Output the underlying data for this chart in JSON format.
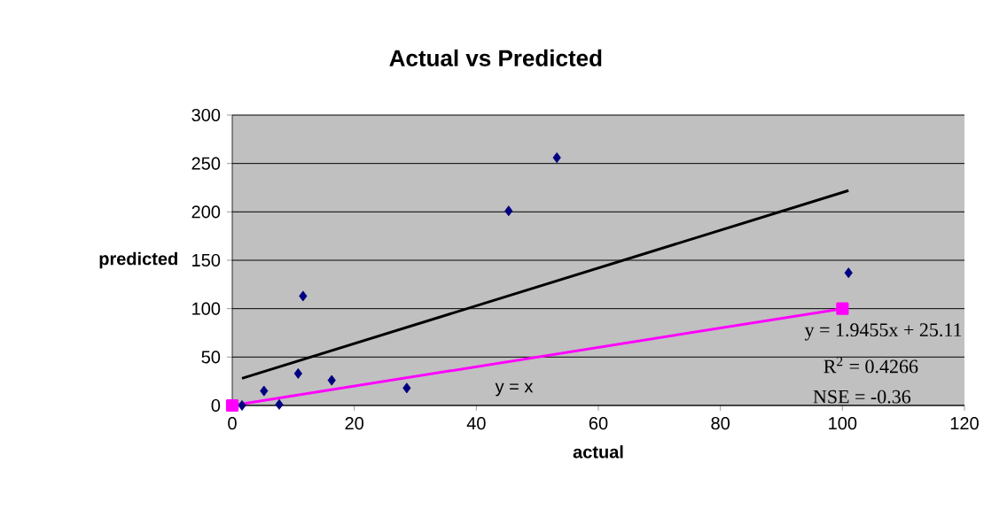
{
  "chart_data": {
    "type": "scatter",
    "title": "Actual vs Predicted",
    "xlabel": "actual",
    "ylabel": "predicted",
    "xlim": [
      0,
      120
    ],
    "xticks": [
      0,
      20,
      40,
      60,
      80,
      100,
      120
    ],
    "ylim": [
      0,
      300
    ],
    "yticks": [
      0,
      50,
      100,
      150,
      200,
      250,
      300
    ],
    "grid": "y",
    "series": [
      {
        "color": "#000080",
        "marker": "diamond",
        "x": [
          1.6,
          5.2,
          7.7,
          10.8,
          11.6,
          16.3,
          28.6,
          45.3,
          53.2,
          101
        ],
        "values": [
          0,
          15,
          1,
          33,
          113,
          26,
          18,
          201,
          256,
          137
        ]
      },
      {
        "type": "line",
        "color": "#000000",
        "marker": "none",
        "x": [
          1.6,
          101
        ],
        "values": [
          28,
          222
        ]
      },
      {
        "type": "line",
        "color": "#ff00ff",
        "marker": "square",
        "x": [
          0,
          100
        ],
        "values": [
          0,
          100
        ]
      }
    ],
    "annotations": [
      "y = x",
      "y = 1.9455x + 25.11",
      "R$^{2}$ = 0.4266",
      "NSE = -0.36"
    ]
  }
}
